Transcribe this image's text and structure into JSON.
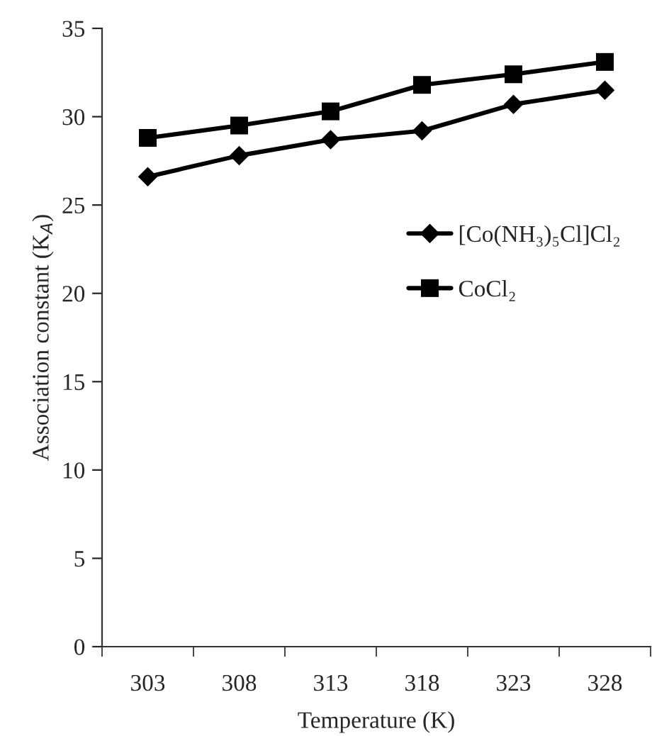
{
  "chart_data": {
    "type": "line",
    "xlabel": "Temperature (K)",
    "ylabel": "Association constant (K$_{A}$)",
    "categories": [
      "303",
      "308",
      "313",
      "318",
      "323",
      "328"
    ],
    "series": [
      {
        "name": "[Co(NH₃)₅Cl]Cl₂",
        "color": "#000000",
        "marker": "diamond",
        "values": [
          26.6,
          27.8,
          28.7,
          29.2,
          30.7,
          31.5
        ]
      },
      {
        "name": "CoCl₂",
        "color": "#000000",
        "marker": "square",
        "values": [
          28.8,
          29.5,
          30.3,
          31.8,
          32.4,
          33.1
        ]
      }
    ],
    "ylim": [
      0,
      35
    ],
    "yticks": [
      0,
      5,
      10,
      15,
      20,
      25,
      30,
      35
    ],
    "grid": false,
    "legend": "right",
    "line_style": "solid"
  }
}
